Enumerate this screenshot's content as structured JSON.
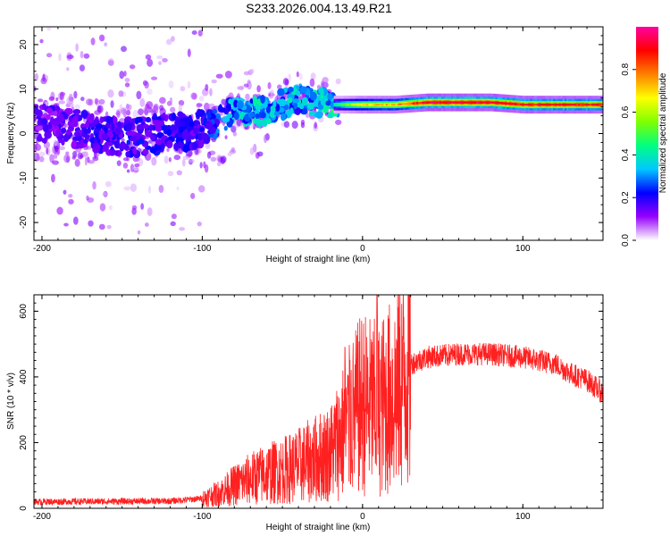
{
  "title": "S233.2026.004.13.49.R21",
  "chart_data": [
    {
      "type": "heatmap",
      "xlabel": "Height of straight line (km)",
      "ylabel": "Frequency (Hz)",
      "xlim": [
        -205,
        150
      ],
      "ylim": [
        -24,
        24
      ],
      "xticks": [
        -200,
        -100,
        0,
        100
      ],
      "yticks": [
        -20,
        -10,
        0,
        10,
        20
      ],
      "colorbar": {
        "label": "Normalized spectral amplitude",
        "range": [
          0,
          1
        ],
        "ticks": [
          "0.0",
          "0.2",
          "0.4",
          "0.6",
          "0.8"
        ],
        "colors": [
          "#ffffff",
          "#9600ff",
          "#0000ff",
          "#00c8ff",
          "#00ff80",
          "#80ff00",
          "#ffff00",
          "#ff8000",
          "#ff0000",
          "#ff00a0"
        ]
      },
      "ridge": [
        {
          "x": -200,
          "freq": 2.5,
          "amp": 0.15
        },
        {
          "x": -150,
          "freq": -1,
          "amp": 0.2
        },
        {
          "x": -100,
          "freq": 1,
          "amp": 0.2
        },
        {
          "x": -80,
          "freq": 5,
          "amp": 0.35
        },
        {
          "x": -60,
          "freq": 5,
          "amp": 0.35
        },
        {
          "x": -40,
          "freq": 8,
          "amp": 0.3
        },
        {
          "x": -20,
          "freq": 6.5,
          "amp": 0.4
        },
        {
          "x": 0,
          "freq": 6.5,
          "amp": 0.7
        },
        {
          "x": 20,
          "freq": 6.5,
          "amp": 0.75
        },
        {
          "x": 40,
          "freq": 7,
          "amp": 0.95
        },
        {
          "x": 80,
          "freq": 7,
          "amp": 0.95
        },
        {
          "x": 100,
          "freq": 6.5,
          "amp": 0.9
        },
        {
          "x": 150,
          "freq": 6.5,
          "amp": 0.9
        }
      ]
    },
    {
      "type": "line",
      "xlabel": "Height of straight line (km)",
      "ylabel": "SNR (10 * v/v)",
      "xlim": [
        -205,
        150
      ],
      "ylim": [
        0,
        650
      ],
      "xticks": [
        -200,
        -100,
        0,
        100
      ],
      "yticks": [
        0,
        200,
        400,
        600
      ],
      "color": "#ff2020",
      "envelope": {
        "x": [
          -205,
          -120,
          -100,
          -90,
          -80,
          -70,
          -60,
          -50,
          -40,
          -30,
          -20,
          -10,
          0,
          10,
          20,
          30,
          40,
          60,
          80,
          100,
          120,
          130,
          140,
          150
        ],
        "y": [
          20,
          22,
          30,
          45,
          70,
          90,
          105,
          115,
          130,
          150,
          170,
          250,
          320,
          300,
          350,
          440,
          460,
          470,
          470,
          460,
          440,
          410,
          390,
          350
        ]
      },
      "spikes": [
        {
          "x": 9,
          "y": 650
        },
        {
          "x": -11,
          "y": 490
        },
        {
          "x": -8,
          "y": 450
        }
      ]
    }
  ]
}
